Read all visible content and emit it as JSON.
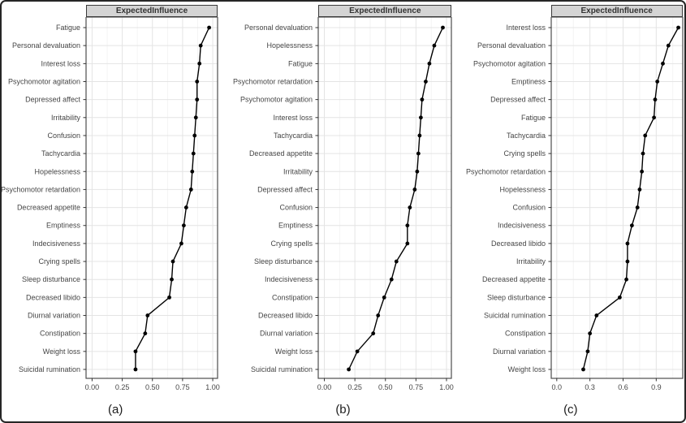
{
  "colors": {
    "background": "#ffffff",
    "figure_border": "#262626",
    "strip_bg": "#d4d4d4",
    "strip_border": "#3a3a3a",
    "panel_border": "#4d4d4d",
    "grid_major": "#e4e4e4",
    "grid_minor": "#f1f1f1",
    "line": "#000000",
    "point": "#000000",
    "axis_text": "#454545",
    "tick_mark": "#333333",
    "caption_text": "#1c1c1c"
  },
  "chart_data": [
    {
      "type": "line",
      "panel": "a",
      "strip_title": "ExpectedInfluence",
      "caption": "(a)",
      "orientation": "horizontal",
      "grid": true,
      "xlim": [
        -0.05,
        1.04
      ],
      "xticks": [
        0,
        0.25,
        0.5,
        0.75,
        1.0
      ],
      "xtick_labels": [
        "0.00",
        "0.25",
        "0.50",
        "0.75",
        "1.00"
      ],
      "categories": [
        "Fatigue",
        "Personal devaluation",
        "Interest loss",
        "Psychomotor agitation",
        "Depressed affect",
        "Irritability",
        "Confusion",
        "Tachycardia",
        "Hopelessness",
        "Psychomotor retardation",
        "Decreased appetite",
        "Emptiness",
        "Indecisiveness",
        "Crying spells",
        "Sleep disturbance",
        "Decreased libido",
        "Diurnal variation",
        "Constipation",
        "Weight loss",
        "Suicidal rumination"
      ],
      "values": [
        0.97,
        0.9,
        0.89,
        0.87,
        0.87,
        0.86,
        0.85,
        0.84,
        0.83,
        0.82,
        0.78,
        0.76,
        0.74,
        0.67,
        0.66,
        0.64,
        0.46,
        0.44,
        0.36,
        0.36
      ]
    },
    {
      "type": "line",
      "panel": "b",
      "strip_title": "ExpectedInfluence",
      "caption": "(b)",
      "orientation": "horizontal",
      "grid": true,
      "xlim": [
        -0.05,
        1.04
      ],
      "xticks": [
        0,
        0.25,
        0.5,
        0.75,
        1.0
      ],
      "xtick_labels": [
        "0.00",
        "0.25",
        "0.50",
        "0.75",
        "1.00"
      ],
      "categories": [
        "Personal devaluation",
        "Hopelessness",
        "Fatigue",
        "Psychomotor retardation",
        "Psychomotor agitation",
        "Interest loss",
        "Tachycardia",
        "Decreased appetite",
        "Irritability",
        "Depressed affect",
        "Confusion",
        "Emptiness",
        "Crying spells",
        "Sleep disturbance",
        "Indecisiveness",
        "Constipation",
        "Decreased libido",
        "Diurnal variation",
        "Weight loss",
        "Suicidal rumination"
      ],
      "values": [
        0.97,
        0.9,
        0.86,
        0.83,
        0.8,
        0.79,
        0.78,
        0.77,
        0.76,
        0.74,
        0.7,
        0.68,
        0.68,
        0.59,
        0.55,
        0.49,
        0.44,
        0.4,
        0.27,
        0.2
      ]
    },
    {
      "type": "line",
      "panel": "c",
      "strip_title": "ExpectedInfluence",
      "caption": "(c)",
      "orientation": "horizontal",
      "grid": true,
      "xlim": [
        -0.05,
        1.14
      ],
      "xticks": [
        0,
        0.3,
        0.6,
        0.9
      ],
      "xtick_labels": [
        "0.0",
        "0.3",
        "0.6",
        "0.9"
      ],
      "categories": [
        "Interest loss",
        "Personal devaluation",
        "Psychomotor agitation",
        "Emptiness",
        "Depressed affect",
        "Fatigue",
        "Tachycardia",
        "Crying spells",
        "Psychomotor retardation",
        "Hopelessness",
        "Confusion",
        "Indecisiveness",
        "Decreased libido",
        "Irritability",
        "Decreased appetite",
        "Sleep disturbance",
        "Suicidal rumination",
        "Constipation",
        "Diurnal variation",
        "Weight loss"
      ],
      "values": [
        1.1,
        1.01,
        0.96,
        0.91,
        0.89,
        0.88,
        0.8,
        0.78,
        0.77,
        0.75,
        0.73,
        0.68,
        0.64,
        0.64,
        0.63,
        0.57,
        0.36,
        0.3,
        0.28,
        0.24
      ]
    }
  ]
}
